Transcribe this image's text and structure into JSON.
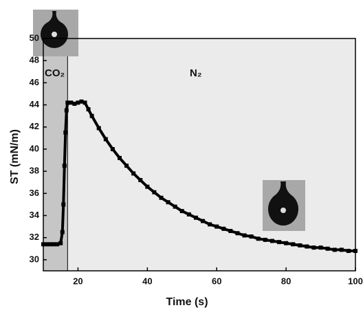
{
  "chart_data": {
    "type": "line",
    "x_label": "Time (s)",
    "y_label": "ST (mN/m)",
    "annotations": [
      "CO₂",
      "N₂"
    ],
    "shaded_region": [
      10,
      17
    ],
    "x": [
      10,
      11,
      12,
      13,
      14,
      15,
      15.5,
      15.8,
      16.1,
      16.4,
      16.7,
      17,
      18,
      19,
      20,
      21,
      22,
      23,
      24,
      26,
      28,
      30,
      32,
      34,
      36,
      38,
      40,
      42,
      44,
      46,
      48,
      50,
      52,
      54,
      56,
      58,
      60,
      62,
      64,
      66,
      68,
      70,
      72,
      74,
      76,
      78,
      80,
      82,
      84,
      86,
      88,
      90,
      92,
      94,
      96,
      98,
      100
    ],
    "values": [
      31.4,
      31.4,
      31.4,
      31.4,
      31.4,
      31.5,
      32.5,
      35,
      38.5,
      41.5,
      43.5,
      44.2,
      44.2,
      44.1,
      44.2,
      44.3,
      44.2,
      43.6,
      43.0,
      41.9,
      40.9,
      40.0,
      39.2,
      38.5,
      37.8,
      37.2,
      36.6,
      36.1,
      35.6,
      35.2,
      34.8,
      34.4,
      34.1,
      33.8,
      33.5,
      33.2,
      33.0,
      32.8,
      32.6,
      32.4,
      32.2,
      32.1,
      31.9,
      31.8,
      31.7,
      31.6,
      31.5,
      31.4,
      31.3,
      31.2,
      31.1,
      31.1,
      31.0,
      30.9,
      30.9,
      30.8,
      30.8
    ],
    "color": "#000000",
    "xlim": [
      10,
      100
    ],
    "xticks": [
      20,
      40,
      60,
      80,
      100
    ],
    "ylim": [
      29,
      50
    ],
    "yticks": [
      30,
      32,
      34,
      36,
      38,
      40,
      42,
      44,
      46,
      48,
      50
    ]
  }
}
